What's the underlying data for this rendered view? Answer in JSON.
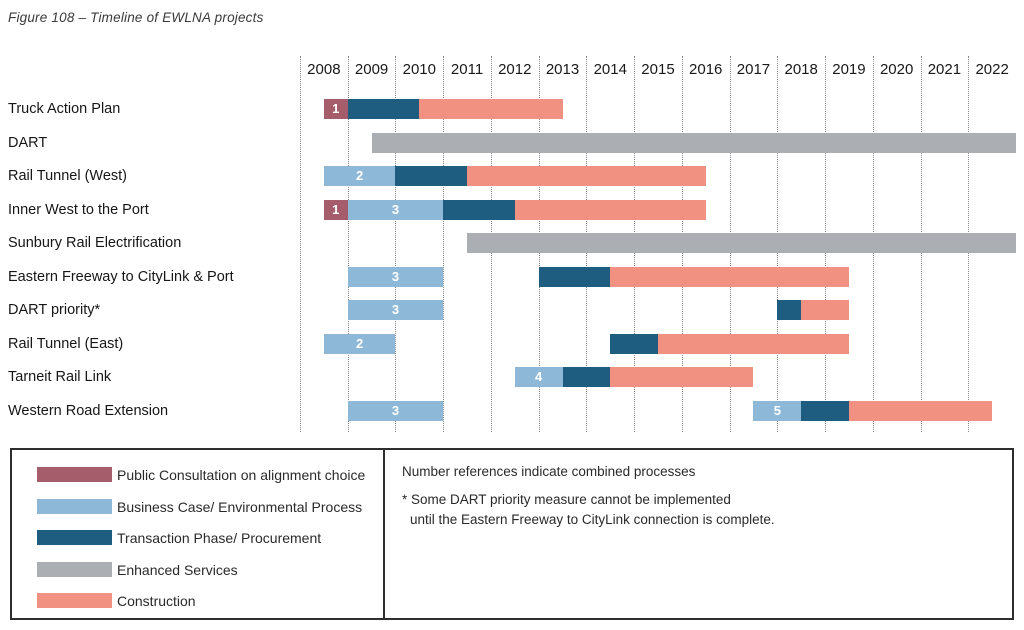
{
  "figure_title": "Figure 108 – Timeline of EWLNA projects",
  "chart_data": {
    "type": "gantt",
    "title": "Figure 108 – Timeline of EWLNA projects",
    "axis_range": [
      2008,
      2023
    ],
    "years": [
      2008,
      2009,
      2010,
      2011,
      2012,
      2013,
      2014,
      2015,
      2016,
      2017,
      2018,
      2019,
      2020,
      2021,
      2022
    ],
    "grid": "dotted-vertical-year-lines",
    "legend_position": "bottom box, left panel",
    "phase_colors": {
      "consultation": "#a55c6b",
      "business": "#8db8d8",
      "transaction": "#1e5d80",
      "enhanced": "#abaeb3",
      "construction": "#f19181"
    },
    "rows": [
      {
        "label": "Truck Action Plan",
        "segments": [
          {
            "phase": "consultation",
            "start": 2008.5,
            "end": 2009.0,
            "ref": "1"
          },
          {
            "phase": "transaction",
            "start": 2009.0,
            "end": 2010.5
          },
          {
            "phase": "construction",
            "start": 2010.5,
            "end": 2013.5
          }
        ]
      },
      {
        "label": "DART",
        "segments": [
          {
            "phase": "enhanced",
            "start": 2009.5,
            "end": 2023.1
          }
        ]
      },
      {
        "label": "Rail Tunnel (West)",
        "segments": [
          {
            "phase": "business",
            "start": 2008.5,
            "end": 2010.0,
            "ref": "2"
          },
          {
            "phase": "transaction",
            "start": 2010.0,
            "end": 2011.5
          },
          {
            "phase": "construction",
            "start": 2011.5,
            "end": 2016.5
          }
        ]
      },
      {
        "label": "Inner West to the Port",
        "segments": [
          {
            "phase": "consultation",
            "start": 2008.5,
            "end": 2009.0,
            "ref": "1"
          },
          {
            "phase": "business",
            "start": 2009.0,
            "end": 2011.0,
            "ref": "3"
          },
          {
            "phase": "transaction",
            "start": 2011.0,
            "end": 2012.5
          },
          {
            "phase": "construction",
            "start": 2012.5,
            "end": 2016.5
          }
        ]
      },
      {
        "label": "Sunbury Rail Electrification",
        "segments": [
          {
            "phase": "enhanced",
            "start": 2011.5,
            "end": 2023.1
          }
        ]
      },
      {
        "label": "Eastern Freeway to CityLink & Port",
        "segments": [
          {
            "phase": "business",
            "start": 2009.0,
            "end": 2011.0,
            "ref": "3"
          },
          {
            "phase": "transaction",
            "start": 2013.0,
            "end": 2014.5
          },
          {
            "phase": "construction",
            "start": 2014.5,
            "end": 2019.5
          }
        ]
      },
      {
        "label": "DART priority*",
        "segments": [
          {
            "phase": "business",
            "start": 2009.0,
            "end": 2011.0,
            "ref": "3"
          },
          {
            "phase": "transaction",
            "start": 2018.0,
            "end": 2018.5
          },
          {
            "phase": "construction",
            "start": 2018.5,
            "end": 2019.5
          }
        ]
      },
      {
        "label": "Rail Tunnel (East)",
        "segments": [
          {
            "phase": "business",
            "start": 2008.5,
            "end": 2010.0,
            "ref": "2"
          },
          {
            "phase": "transaction",
            "start": 2014.5,
            "end": 2015.5
          },
          {
            "phase": "construction",
            "start": 2015.5,
            "end": 2019.5
          }
        ]
      },
      {
        "label": "Tarneit Rail Link",
        "segments": [
          {
            "phase": "business",
            "start": 2012.5,
            "end": 2013.5,
            "ref": "4"
          },
          {
            "phase": "transaction",
            "start": 2013.5,
            "end": 2014.5
          },
          {
            "phase": "construction",
            "start": 2014.5,
            "end": 2017.5
          }
        ]
      },
      {
        "label": "Western Road Extension",
        "segments": [
          {
            "phase": "business",
            "start": 2009.0,
            "end": 2011.0,
            "ref": "3"
          },
          {
            "phase": "business",
            "start": 2017.5,
            "end": 2018.5,
            "ref": "5"
          },
          {
            "phase": "transaction",
            "start": 2018.5,
            "end": 2019.5
          },
          {
            "phase": "construction",
            "start": 2019.5,
            "end": 2022.5
          }
        ]
      }
    ]
  },
  "legend": {
    "items": [
      {
        "phase": "consultation",
        "label": "Public Consultation on alignment choice"
      },
      {
        "phase": "business",
        "label": "Business Case/ Environmental Process"
      },
      {
        "phase": "transaction",
        "label": "Transaction Phase/ Procurement"
      },
      {
        "phase": "enhanced",
        "label": "Enhanced Services"
      },
      {
        "phase": "construction",
        "label": "Construction"
      }
    ]
  },
  "notes": {
    "line1": "Number references indicate combined processes",
    "line2": "* Some DART priority measure cannot be implemented",
    "line3": "until the Eastern Freeway to CityLink connection is complete."
  }
}
